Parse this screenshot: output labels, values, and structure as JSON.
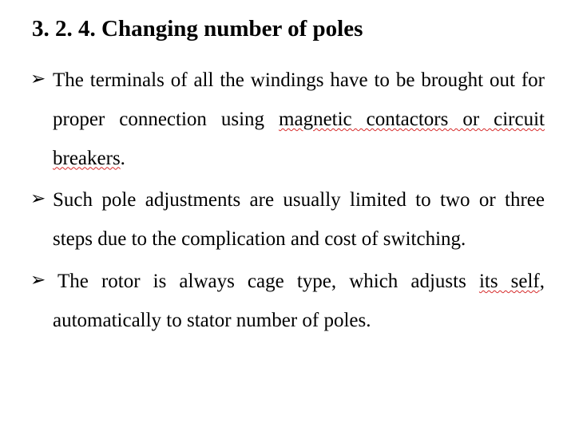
{
  "heading": "3. 2. 4. Changing number of poles",
  "bullets": [
    {
      "parts": [
        {
          "text": "The terminals of all the windings have to be brought out for proper connection using ",
          "err": false
        },
        {
          "text": "magnetic contactors or circuit breakers",
          "err": true
        },
        {
          "text": ".",
          "err": false
        }
      ]
    },
    {
      "parts": [
        {
          "text": "Such pole adjustments are usually limited to two or three steps due to the complication and cost of switching.",
          "err": false
        }
      ]
    },
    {
      "leadingSpace": true,
      "parts": [
        {
          "text": "The rotor is always cage type, which adjusts ",
          "err": false
        },
        {
          "text": "its self",
          "err": true
        },
        {
          "text": ", automatically to stator number of poles.",
          "err": false
        }
      ]
    }
  ],
  "colors": {
    "text": "#000000",
    "background": "#ffffff",
    "error_underline": "#d62a2a"
  },
  "typography": {
    "heading_fontsize": 29,
    "heading_weight": "bold",
    "body_fontsize": 25,
    "body_lineheight": 1.95,
    "font_family": "Georgia, Times New Roman, serif"
  }
}
